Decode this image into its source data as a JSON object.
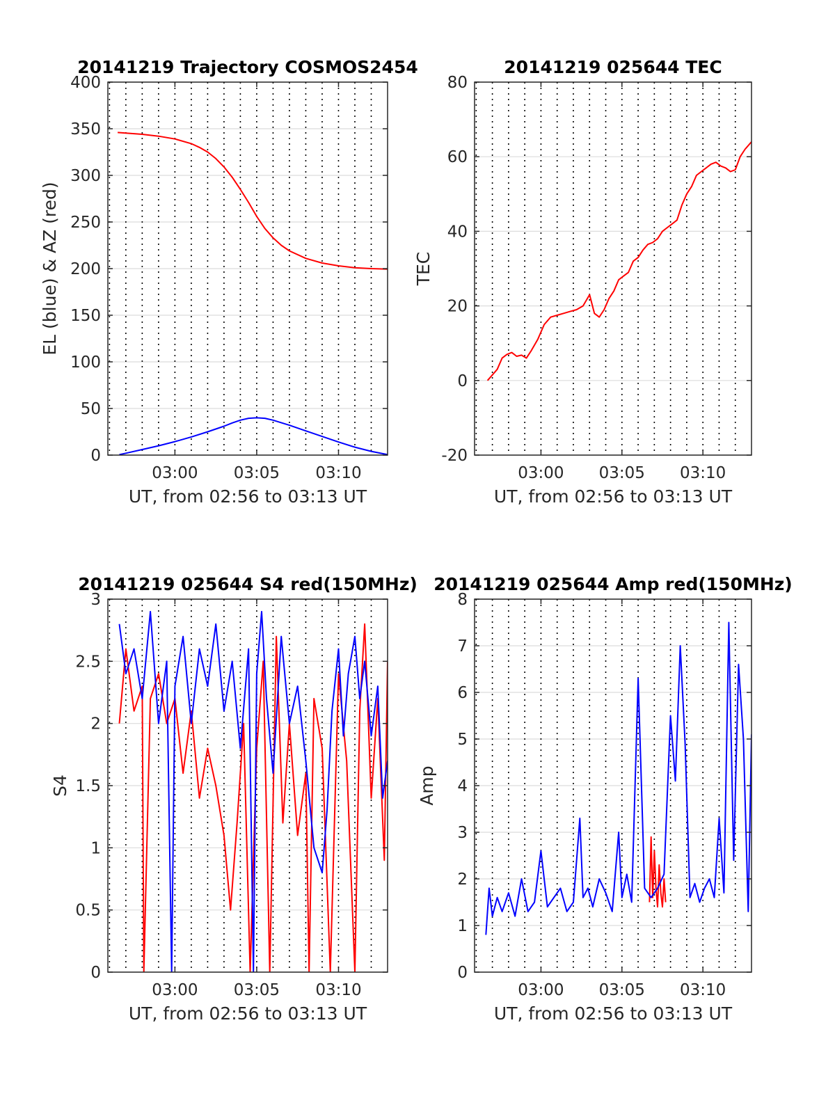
{
  "colors": {
    "red": "#ff0000",
    "blue": "#0000ff",
    "grid": "#dcdcdc",
    "vgrid": "#000000",
    "axis": "#262626"
  },
  "chart_data": [
    {
      "id": "traj",
      "type": "line",
      "title": "20141219 Trajectory COSMOS2454",
      "xlabel": "UT, from 02:56 to 03:13 UT",
      "ylabel": "EL (blue) & AZ (red)",
      "xlim": [
        2.9,
        20.0
      ],
      "ylim": [
        0,
        400
      ],
      "yticks": [
        0,
        50,
        100,
        150,
        200,
        250,
        300,
        350,
        400
      ],
      "xticks": [
        {
          "x": 7,
          "label": "03:00"
        },
        {
          "x": 12,
          "label": "03:05"
        },
        {
          "x": 17,
          "label": "03:10"
        }
      ],
      "minute_grid": [
        3,
        4,
        5,
        6,
        7,
        8,
        9,
        10,
        11,
        12,
        13,
        14,
        15,
        16,
        17,
        18,
        19
      ],
      "x_unit": "minutes after 02:53 UT",
      "series": [
        {
          "color": "#ff0000",
          "x": [
            3.5,
            5,
            6,
            7,
            8,
            8.5,
            9,
            9.5,
            10,
            10.5,
            11,
            11.5,
            12,
            12.5,
            13,
            13.5,
            14,
            15,
            16,
            17,
            18,
            19,
            20
          ],
          "y": [
            346,
            344,
            342,
            339,
            334,
            330,
            325,
            318,
            309,
            298,
            285,
            271,
            256,
            243,
            233,
            225,
            219,
            211,
            206,
            203,
            201,
            200,
            199.5
          ]
        },
        {
          "color": "#0000ff",
          "x": [
            3.6,
            4,
            5,
            6,
            7,
            8,
            9,
            10,
            10.5,
            11,
            11.5,
            12,
            12.5,
            13,
            14,
            15,
            16,
            17,
            18,
            19,
            20
          ],
          "y": [
            0.5,
            2,
            6,
            10,
            14.5,
            19.5,
            25,
            31,
            34.5,
            37.5,
            39.5,
            40,
            39.5,
            37.5,
            32,
            26,
            20,
            14,
            8.5,
            4,
            0.5
          ]
        }
      ]
    },
    {
      "id": "tec",
      "type": "line",
      "title": "20141219 025644 TEC",
      "xlabel": "UT, from 02:56 to 03:13 UT",
      "ylabel": "TEC",
      "xlim": [
        2.9,
        20.0
      ],
      "ylim": [
        -20,
        80
      ],
      "yticks": [
        -20,
        0,
        20,
        40,
        60,
        80
      ],
      "xticks": [
        {
          "x": 7,
          "label": "03:00"
        },
        {
          "x": 12,
          "label": "03:05"
        },
        {
          "x": 17,
          "label": "03:10"
        }
      ],
      "minute_grid": [
        3,
        4,
        5,
        6,
        7,
        8,
        9,
        10,
        11,
        12,
        13,
        14,
        15,
        16,
        17,
        18,
        19
      ],
      "x_unit": "minutes after 02:53 UT",
      "series": [
        {
          "color": "#ff0000",
          "x": [
            3.7,
            4.0,
            4.3,
            4.6,
            4.9,
            5.2,
            5.5,
            5.8,
            6.1,
            6.4,
            6.8,
            7.2,
            7.6,
            8.0,
            8.4,
            8.8,
            9.2,
            9.6,
            10.0,
            10.3,
            10.6,
            10.9,
            11.2,
            11.5,
            11.8,
            12.1,
            12.4,
            12.7,
            13.0,
            13.3,
            13.6,
            13.9,
            14.2,
            14.5,
            14.8,
            15.1,
            15.4,
            15.7,
            16.0,
            16.3,
            16.6,
            16.9,
            17.2,
            17.5,
            17.8,
            18.1,
            18.4,
            18.7,
            19.0,
            19.3,
            19.6,
            20.0
          ],
          "y": [
            0,
            1.5,
            3,
            6,
            7,
            7.5,
            6.5,
            6.8,
            6,
            8,
            11,
            15,
            17,
            17.5,
            18,
            18.5,
            19,
            20,
            23,
            18,
            17,
            19,
            22,
            24,
            27,
            28,
            29,
            32,
            33,
            35,
            36.5,
            37,
            38,
            40,
            41,
            42,
            43,
            47,
            50,
            52,
            55,
            56,
            57,
            58,
            58.5,
            57.5,
            57,
            56,
            56.5,
            60,
            62,
            64
          ]
        }
      ]
    },
    {
      "id": "s4",
      "type": "line",
      "title": "20141219 025644 S4 red(150MHz)",
      "xlabel": "UT, from 02:56 to 03:13 UT",
      "ylabel": "S4",
      "xlim": [
        2.9,
        20.0
      ],
      "ylim": [
        0,
        3
      ],
      "yticks": [
        0,
        0.5,
        1,
        1.5,
        2,
        2.5,
        3
      ],
      "xticks": [
        {
          "x": 7,
          "label": "03:00"
        },
        {
          "x": 12,
          "label": "03:05"
        },
        {
          "x": 17,
          "label": "03:10"
        }
      ],
      "minute_grid": [
        3,
        4,
        5,
        6,
        7,
        8,
        9,
        10,
        11,
        12,
        13,
        14,
        15,
        16,
        17,
        18,
        19
      ],
      "x_unit": "minutes after 02:53 UT",
      "series": [
        {
          "color": "#ff0000",
          "x": [
            3.6,
            4.0,
            4.5,
            5.0,
            5.1,
            5.5,
            6.0,
            6.5,
            7.0,
            7.5,
            8.0,
            8.5,
            9.0,
            9.5,
            10.0,
            10.4,
            10.8,
            11.2,
            11.6,
            12.0,
            12.4,
            12.8,
            13.2,
            13.6,
            14.0,
            14.5,
            15.0,
            15.2,
            15.5,
            16.0,
            16.5,
            17.0,
            17.5,
            18.0,
            18.3,
            18.6,
            19.0,
            19.4,
            19.8,
            20.0
          ],
          "y": [
            2.0,
            2.6,
            2.1,
            2.3,
            0,
            2.2,
            2.4,
            2.0,
            2.2,
            1.6,
            2.1,
            1.4,
            1.8,
            1.5,
            1.1,
            0.5,
            1.2,
            2.0,
            0,
            1.8,
            2.5,
            0,
            2.7,
            1.2,
            2.0,
            1.1,
            1.6,
            0,
            2.2,
            1.8,
            0,
            2.4,
            1.7,
            0,
            2.1,
            2.8,
            1.4,
            2.2,
            0.9,
            2.5
          ]
        },
        {
          "color": "#0000ff",
          "x": [
            3.6,
            4.0,
            4.5,
            5.0,
            5.5,
            6.0,
            6.5,
            6.8,
            7.0,
            7.5,
            8.0,
            8.5,
            9.0,
            9.5,
            10.0,
            10.5,
            11.0,
            11.5,
            11.8,
            12.0,
            12.3,
            12.6,
            13.0,
            13.5,
            14.0,
            14.5,
            15.0,
            15.5,
            16.0,
            16.3,
            16.6,
            17.0,
            17.3,
            17.6,
            18.0,
            18.3,
            18.6,
            19.0,
            19.4,
            19.7,
            20.0
          ],
          "y": [
            2.8,
            2.4,
            2.6,
            2.2,
            2.9,
            2.0,
            2.5,
            0,
            2.3,
            2.7,
            2.0,
            2.6,
            2.3,
            2.8,
            2.1,
            2.5,
            1.8,
            2.6,
            0,
            2.4,
            2.9,
            2.2,
            1.6,
            2.7,
            2.0,
            2.3,
            1.7,
            1.0,
            0.8,
            1.3,
            2.1,
            2.6,
            1.9,
            2.4,
            2.7,
            2.2,
            2.5,
            1.9,
            2.3,
            1.4,
            1.7
          ]
        }
      ]
    },
    {
      "id": "amp",
      "type": "line",
      "title": "20141219 025644 Amp red(150MHz)",
      "xlabel": "UT, from 02:56 to 03:13 UT",
      "ylabel": "Amp",
      "xlim": [
        2.9,
        20.0
      ],
      "ylim": [
        0,
        8
      ],
      "yticks": [
        0,
        1,
        2,
        3,
        4,
        5,
        6,
        7,
        8
      ],
      "xticks": [
        {
          "x": 7,
          "label": "03:00"
        },
        {
          "x": 12,
          "label": "03:05"
        },
        {
          "x": 17,
          "label": "03:10"
        }
      ],
      "minute_grid": [
        3,
        4,
        5,
        6,
        7,
        8,
        9,
        10,
        11,
        12,
        13,
        14,
        15,
        16,
        17,
        18,
        19
      ],
      "x_unit": "minutes after 02:53 UT",
      "series": [
        {
          "color": "#ff0000",
          "x": [
            13.7,
            13.8,
            13.9,
            14.0,
            14.1,
            14.2,
            14.3,
            14.4,
            14.5,
            14.6,
            14.7
          ],
          "y": [
            1.5,
            2.9,
            1.6,
            2.6,
            1.8,
            1.4,
            2.3,
            1.7,
            1.4,
            2.0,
            1.5
          ]
        },
        {
          "color": "#0000ff",
          "x": [
            3.6,
            3.8,
            4.0,
            4.3,
            4.6,
            5.0,
            5.4,
            5.8,
            6.2,
            6.6,
            7.0,
            7.4,
            7.8,
            8.2,
            8.6,
            9.0,
            9.4,
            9.6,
            9.9,
            10.2,
            10.6,
            11.0,
            11.4,
            11.8,
            12.0,
            12.3,
            12.6,
            13.0,
            13.4,
            13.8,
            14.2,
            14.6,
            15.0,
            15.3,
            15.6,
            15.9,
            16.2,
            16.5,
            16.8,
            17.1,
            17.4,
            17.7,
            18.0,
            18.3,
            18.6,
            18.9,
            19.2,
            19.5,
            19.8,
            20.0
          ],
          "y": [
            0.8,
            1.8,
            1.2,
            1.6,
            1.3,
            1.7,
            1.2,
            2.0,
            1.3,
            1.5,
            2.6,
            1.4,
            1.6,
            1.8,
            1.3,
            1.5,
            3.3,
            1.6,
            1.8,
            1.4,
            2.0,
            1.7,
            1.3,
            3.0,
            1.6,
            2.1,
            1.5,
            6.3,
            1.8,
            1.6,
            1.8,
            2.1,
            5.5,
            4.1,
            7.0,
            4.9,
            1.6,
            1.9,
            1.5,
            1.8,
            2.0,
            1.6,
            3.3,
            1.7,
            7.5,
            2.4,
            6.6,
            5.0,
            1.3,
            5.1
          ]
        }
      ]
    }
  ]
}
